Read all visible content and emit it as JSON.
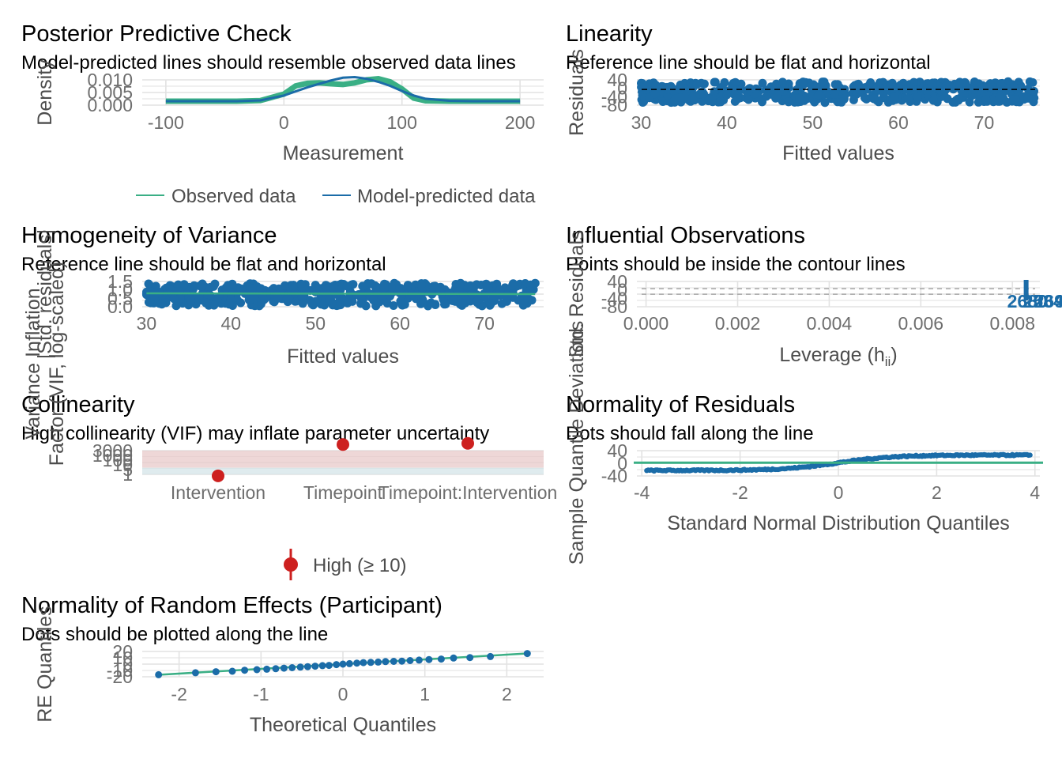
{
  "colors": {
    "green": "#3aaf85",
    "blue": "#1b6ca8",
    "red": "#cd201f",
    "grid": "#e2e2e2",
    "tick_text": "#6e6e6e",
    "axis_text": "#4d4d4d",
    "ref_line": "#000000",
    "band": "#e8c9c9"
  },
  "chart_data": [
    {
      "id": "ppc",
      "type": "line",
      "title": "Posterior Predictive Check",
      "subtitle": "Model-predicted lines should resemble observed data lines",
      "xlabel": "Measurement",
      "ylabel": "Density",
      "xticks": [
        "-100",
        "0",
        "100",
        "200"
      ],
      "yticks": [
        "0.000",
        "0.005",
        "0.010"
      ],
      "xlim": [
        -120,
        220
      ],
      "ylim": [
        0,
        0.012
      ],
      "legend_position": "bottom",
      "series": [
        {
          "name": "Observed data",
          "color_key": "green",
          "x": [
            -100,
            -40,
            -20,
            0,
            10,
            20,
            30,
            40,
            50,
            60,
            70,
            80,
            90,
            100,
            110,
            120,
            140,
            160,
            200
          ],
          "y": [
            0,
            0,
            0.0003,
            0.0035,
            0.0075,
            0.0088,
            0.009,
            0.0085,
            0.0082,
            0.009,
            0.0105,
            0.011,
            0.0095,
            0.006,
            0.0015,
            0.0002,
            0,
            0,
            0
          ]
        },
        {
          "name": "Model-predicted data",
          "color_key": "blue",
          "x": [
            -100,
            -40,
            -20,
            0,
            10,
            20,
            30,
            40,
            50,
            60,
            70,
            80,
            90,
            100,
            110,
            120,
            140,
            160,
            200
          ],
          "y": [
            0,
            0,
            0.0004,
            0.0028,
            0.0048,
            0.0068,
            0.0085,
            0.0102,
            0.0115,
            0.0118,
            0.011,
            0.0095,
            0.0075,
            0.005,
            0.0028,
            0.0012,
            0.0002,
            0,
            0
          ]
        }
      ]
    },
    {
      "id": "linearity",
      "type": "scatter",
      "title": "Linearity",
      "subtitle": "Reference line should be flat and horizontal",
      "xlabel": "Fitted values",
      "ylabel": "Residuals",
      "xticks": [
        "30",
        "40",
        "50",
        "60",
        "70"
      ],
      "yticks": [
        "-80",
        "-40",
        "0",
        "40"
      ],
      "xlim": [
        29.5,
        76.5
      ],
      "ylim": [
        -90,
        55
      ],
      "point_color_key": "blue",
      "ref_y": 0,
      "x_range": [
        30,
        76
      ],
      "y_spread": [
        -75,
        45
      ]
    },
    {
      "id": "homogeneity",
      "type": "scatter",
      "title": "Homogeneity of Variance",
      "subtitle": "Reference line should be flat and horizontal",
      "xlabel": "Fitted values",
      "ylabel": "|Std. residuals|",
      "xticks": [
        "30",
        "40",
        "50",
        "60",
        "70"
      ],
      "yticks": [
        "0.0",
        "0.5",
        "1.0",
        "1.5"
      ],
      "xlim": [
        29.5,
        77
      ],
      "ylim": [
        0,
        1.6
      ],
      "point_color_key": "blue",
      "smooth_y": [
        0.85,
        0.8
      ],
      "x_range": [
        30,
        76
      ],
      "y_spread": [
        0.05,
        1.5
      ]
    },
    {
      "id": "influential",
      "type": "scatter",
      "title": "Influential Observations",
      "subtitle": "Points should be inside the contour lines",
      "xlabel": "Leverage (h",
      "xlabel_sub": "ii",
      "xlabel_end": ")",
      "ylabel": "Std. Residuals",
      "xticks": [
        "0.000",
        "0.002",
        "0.004",
        "0.006",
        "0.008"
      ],
      "yticks": [
        "-80",
        "-40",
        "0",
        "40"
      ],
      "xlim": [
        -0.0002,
        0.0086
      ],
      "ylim": [
        -90,
        55
      ],
      "point_color_key": "blue",
      "leverage": 0.0083,
      "point_labels": [
        "2680",
        "2584",
        "2691"
      ]
    },
    {
      "id": "collinearity",
      "type": "scatter",
      "title": "Collinearity",
      "subtitle": "High collinearity (VIF) may inflate parameter uncertainty",
      "xlabel": "",
      "ylabel": "Variance Inflation Factor (VIF, log-scaled)",
      "categories": [
        "Intervention",
        "Timepoint",
        "Timepoint:Intervention"
      ],
      "values": [
        1.5,
        3000,
        4000
      ],
      "yticks": [
        "1",
        "5",
        "10",
        "100",
        "1000",
        "3000"
      ],
      "ylim": [
        1,
        10000
      ],
      "log_scale": true,
      "legend_position": "bottom",
      "legend": [
        "High (≥ 10)"
      ],
      "point_color_key": "red"
    },
    {
      "id": "normres",
      "type": "scatter",
      "title": "Normality of Residuals",
      "subtitle": "Dots should fall along the line",
      "xlabel": "Standard Normal Distribution Quantiles",
      "ylabel": "Sample Quantile Deviations",
      "xticks": [
        "-4",
        "-2",
        "0",
        "2",
        "4"
      ],
      "yticks": [
        "-40",
        "0",
        "40"
      ],
      "xlim": [
        -4.1,
        4.1
      ],
      "ylim": [
        -60,
        55
      ],
      "point_color_key": "blue",
      "ref_y": 0
    },
    {
      "id": "re",
      "type": "scatter",
      "title": "Normality of Random Effects (Participant)",
      "subtitle": "Dots should be plotted along the line",
      "xlabel": "Theoretical Quantiles",
      "ylabel": "RE Quantiles",
      "xticks": [
        "-2",
        "-1",
        "0",
        "1",
        "2"
      ],
      "yticks": [
        "-20",
        "-10",
        "0",
        "10",
        "20"
      ],
      "xlim": [
        -2.45,
        2.45
      ],
      "ylim": [
        -25,
        25
      ],
      "x": [
        -2.25,
        -1.8,
        -1.55,
        -1.35,
        -1.2,
        -1.05,
        -0.93,
        -0.82,
        -0.72,
        -0.62,
        -0.52,
        -0.43,
        -0.34,
        -0.25,
        -0.17,
        -0.08,
        0,
        0.08,
        0.17,
        0.25,
        0.34,
        0.43,
        0.52,
        0.62,
        0.72,
        0.82,
        0.93,
        1.05,
        1.2,
        1.35,
        1.55,
        1.8,
        2.25
      ],
      "y": [
        -21,
        -17,
        -15,
        -14,
        -12,
        -11,
        -10,
        -9,
        -8,
        -7,
        -6,
        -5,
        -4,
        -3,
        -2.5,
        -1,
        0,
        1,
        2,
        3,
        3.5,
        4,
        5,
        5.5,
        6,
        7,
        8,
        9,
        10,
        12,
        13,
        15,
        21
      ],
      "line_y": [
        -21,
        21
      ],
      "point_color_key": "blue"
    }
  ]
}
